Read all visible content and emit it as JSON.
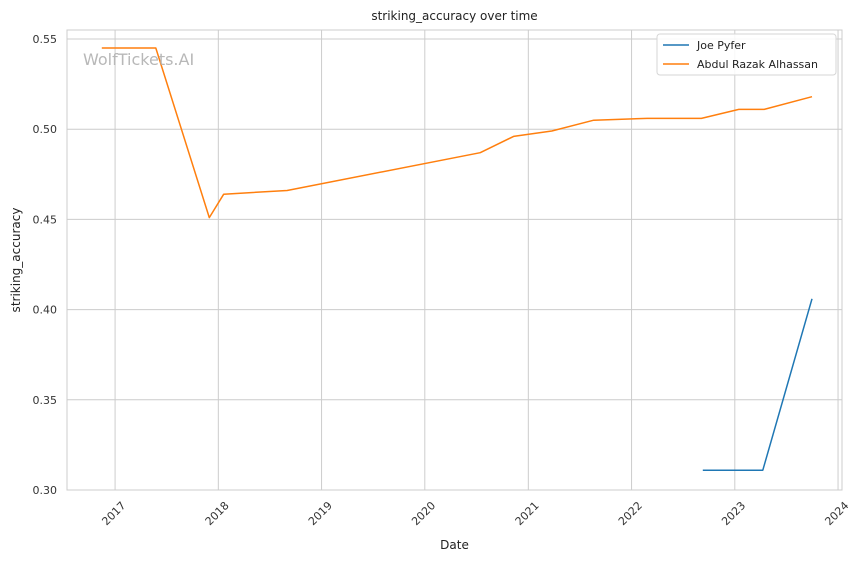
{
  "chart_data": {
    "type": "line",
    "title": "striking_accuracy over time",
    "xlabel": "Date",
    "ylabel": "striking_accuracy",
    "watermark": "WolfTickets.AI",
    "x_axis": {
      "type": "date",
      "range": [
        "2016-07-15",
        "2024-01-15"
      ],
      "ticks": [
        "2017",
        "2018",
        "2019",
        "2020",
        "2021",
        "2022",
        "2023",
        "2024"
      ]
    },
    "y_axis": {
      "range": [
        0.3,
        0.555
      ],
      "ticks": [
        "0.30",
        "0.35",
        "0.40",
        "0.45",
        "0.50",
        "0.55"
      ]
    },
    "grid": true,
    "legend_position": "top-right",
    "series": [
      {
        "name": "Joe Pyfer",
        "color": "#1f77b4",
        "points": [
          [
            "2022-09-10",
            0.311
          ],
          [
            "2023-04-10",
            0.311
          ],
          [
            "2023-10-01",
            0.406
          ]
        ]
      },
      {
        "name": "Abdul Razak Alhassan",
        "color": "#ff7f0e",
        "points": [
          [
            "2016-11-15",
            0.545
          ],
          [
            "2017-05-25",
            0.545
          ],
          [
            "2017-11-30",
            0.451
          ],
          [
            "2018-01-20",
            0.464
          ],
          [
            "2018-09-01",
            0.466
          ],
          [
            "2020-07-15",
            0.487
          ],
          [
            "2020-11-10",
            0.496
          ],
          [
            "2021-03-25",
            0.499
          ],
          [
            "2021-08-20",
            0.505
          ],
          [
            "2022-02-25",
            0.506
          ],
          [
            "2022-09-05",
            0.506
          ],
          [
            "2023-01-15",
            0.511
          ],
          [
            "2023-04-15",
            0.511
          ],
          [
            "2023-10-01",
            0.518
          ]
        ]
      }
    ]
  }
}
